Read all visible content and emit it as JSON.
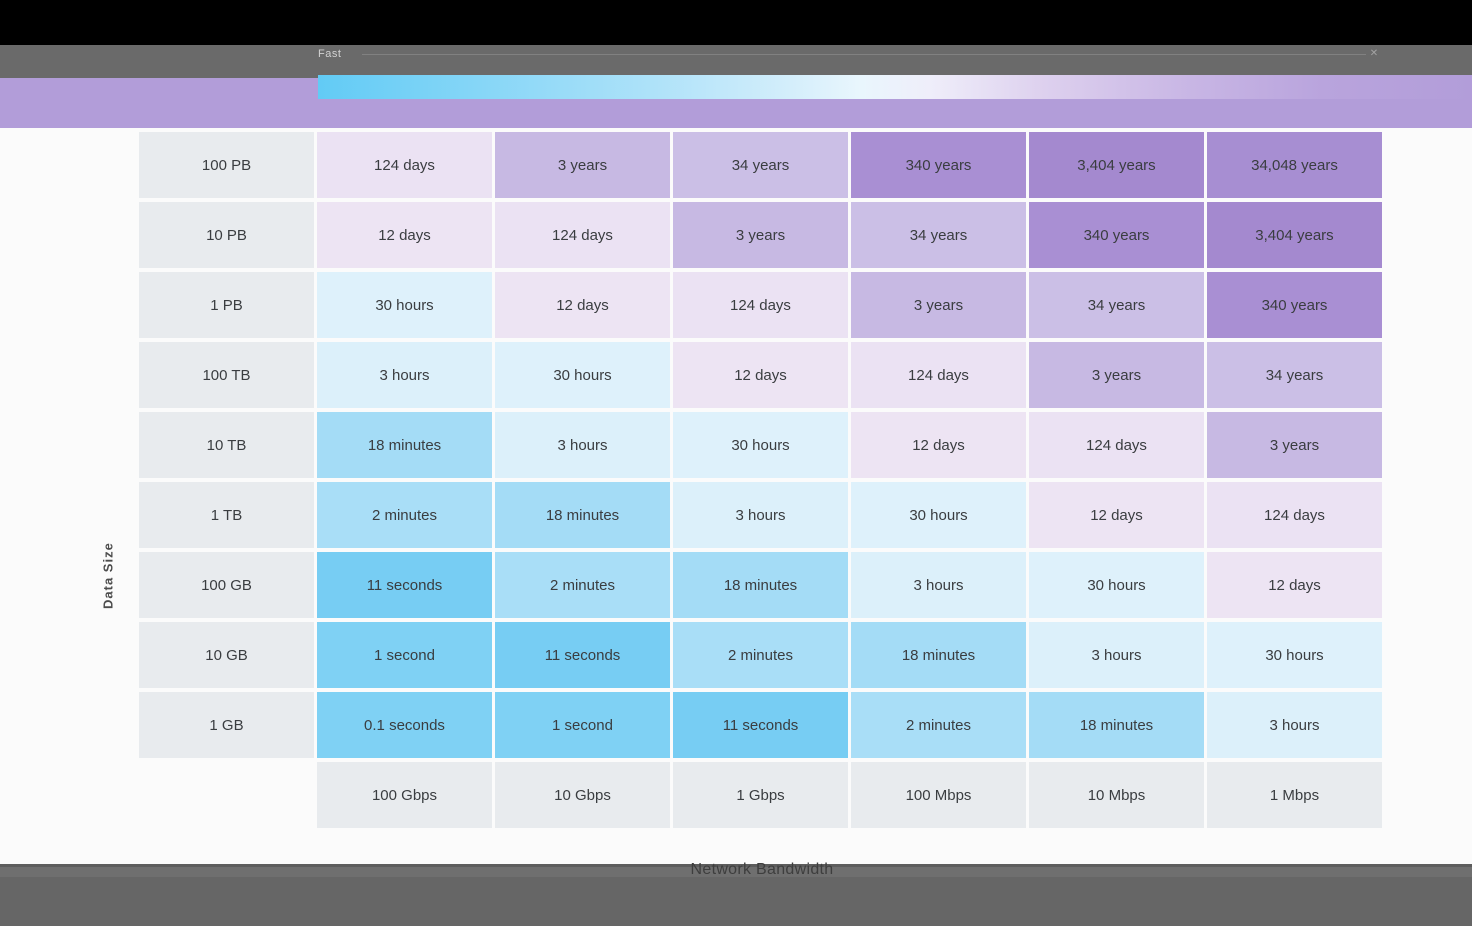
{
  "chrome": {
    "legend_caption": "Fast",
    "window_control_glyph": "✕"
  },
  "axes": {
    "y_label": "Data Size",
    "x_label": "Network Bandwidth"
  },
  "colors": {
    "band_purple": "#b29dd9",
    "label_cell_bg": "#e8ebee",
    "cell_text": "#3a3d40",
    "gradient_start_blue": "#62cbf5",
    "gradient_end_purple": "#b29dd9",
    "topbar_black": "#000000",
    "chrome_gray": "#6a6a6a"
  },
  "chart_data": {
    "type": "heatmap",
    "title": "",
    "xlabel": "Network Bandwidth",
    "ylabel": "Data Size",
    "x_categories": [
      "100 Gbps",
      "10 Gbps",
      "1 Gbps",
      "100 Mbps",
      "10 Mbps",
      "1 Mbps"
    ],
    "y_categories": [
      "100 PB",
      "10 PB",
      "1 PB",
      "100 TB",
      "10 TB",
      "1 TB",
      "100 GB",
      "10 GB",
      "1 GB"
    ],
    "rows": [
      [
        "124 days",
        "3 years",
        "34 years",
        "340 years",
        "3,404 years",
        "34,048 years"
      ],
      [
        "12 days",
        "124 days",
        "3 years",
        "34 years",
        "340 years",
        "3,404 years"
      ],
      [
        "30 hours",
        "12 days",
        "124 days",
        "3 years",
        "34 years",
        "340 years"
      ],
      [
        "3 hours",
        "30 hours",
        "12 days",
        "124 days",
        "3 years",
        "34 years"
      ],
      [
        "18 minutes",
        "3 hours",
        "30 hours",
        "12 days",
        "124 days",
        "3 years"
      ],
      [
        "2 minutes",
        "18 minutes",
        "3 hours",
        "30 hours",
        "12 days",
        "124 days"
      ],
      [
        "11 seconds",
        "2 minutes",
        "18 minutes",
        "3 hours",
        "30 hours",
        "12 days"
      ],
      [
        "1 second",
        "11 seconds",
        "2 minutes",
        "18 minutes",
        "3 hours",
        "30 hours"
      ],
      [
        "0.1 seconds",
        "1 second",
        "11 seconds",
        "2 minutes",
        "18 minutes",
        "3 hours"
      ]
    ],
    "value_colors": {
      "0.1 seconds": "#7fd1f4",
      "1 second": "#7fd1f4",
      "11 seconds": "#77cdf3",
      "2 minutes": "#a9def7",
      "18 minutes": "#a4dcf6",
      "3 hours": "#dcf0fa",
      "30 hours": "#def1fb",
      "12 days": "#ede4f3",
      "124 days": "#ebe2f3",
      "3 years": "#c7b9e3",
      "34 years": "#cbbfe6",
      "340 years": "#a98fd3",
      "3,404 years": "#a489cf",
      "34,048 years": "#a78ed2"
    },
    "legend": {
      "position": "top",
      "scale": "fast-blue to slow-purple"
    }
  }
}
